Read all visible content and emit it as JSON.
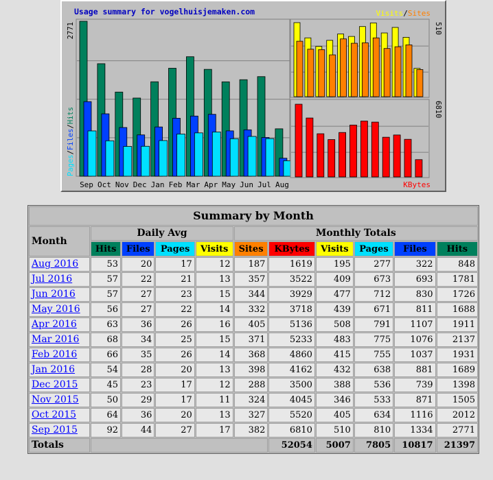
{
  "chart": {
    "title": "Usage summary for vogelhuisjemaken.com",
    "left_axis_label_parts": [
      "Pages",
      "/",
      "Files",
      "/",
      "Hits"
    ],
    "left_axis_max": "2771",
    "right_top_label_parts": [
      "Visits",
      "/",
      "Sites"
    ],
    "right_top_max": "510",
    "right_bottom_label": "KBytes",
    "right_bottom_max": "6810"
  },
  "chart_data": [
    {
      "type": "bar",
      "categories": [
        "Sep",
        "Oct",
        "Nov",
        "Dec",
        "Jan",
        "Feb",
        "Mar",
        "Apr",
        "May",
        "Jun",
        "Jul",
        "Aug"
      ],
      "series": [
        {
          "name": "Hits",
          "values": [
            2771,
            2012,
            1505,
            1398,
            1689,
            1931,
            2137,
            1911,
            1688,
            1726,
            1781,
            848
          ]
        },
        {
          "name": "Files",
          "values": [
            1334,
            1116,
            871,
            739,
            881,
            1037,
            1076,
            1107,
            811,
            830,
            693,
            322
          ]
        },
        {
          "name": "Pages",
          "values": [
            810,
            634,
            533,
            536,
            638,
            755,
            775,
            791,
            671,
            712,
            673,
            277
          ]
        }
      ],
      "ylim": [
        0,
        2771
      ]
    },
    {
      "type": "bar",
      "categories": [
        "Sep",
        "Oct",
        "Nov",
        "Dec",
        "Jan",
        "Feb",
        "Mar",
        "Apr",
        "May",
        "Jun",
        "Jul",
        "Aug"
      ],
      "series": [
        {
          "name": "Visits",
          "values": [
            510,
            405,
            346,
            388,
            432,
            415,
            483,
            508,
            439,
            477,
            409,
            195
          ]
        },
        {
          "name": "Sites",
          "values": [
            382,
            327,
            324,
            288,
            398,
            368,
            371,
            405,
            332,
            344,
            357,
            187
          ]
        }
      ],
      "ylim": [
        0,
        510
      ]
    },
    {
      "type": "bar",
      "categories": [
        "Sep",
        "Oct",
        "Nov",
        "Dec",
        "Jan",
        "Feb",
        "Mar",
        "Apr",
        "May",
        "Jun",
        "Jul",
        "Aug"
      ],
      "series": [
        {
          "name": "KBytes",
          "values": [
            6810,
            5520,
            4045,
            3500,
            4162,
            4860,
            5233,
            5136,
            3718,
            3929,
            3522,
            1619
          ]
        }
      ],
      "ylim": [
        0,
        6810
      ]
    }
  ],
  "colors": {
    "hits": "#00805c",
    "files": "#0040ff",
    "pages": "#00e0ff",
    "visits": "#ffff00",
    "sites": "#ff8000",
    "kbytes": "#ff0000",
    "link": "#0000ff"
  },
  "table": {
    "title": "Summary by Month",
    "month_header": "Month",
    "daily_avg_header": "Daily Avg",
    "monthly_totals_header": "Monthly Totals",
    "daily_columns": [
      "Hits",
      "Files",
      "Pages",
      "Visits"
    ],
    "monthly_columns": [
      "Sites",
      "KBytes",
      "Visits",
      "Pages",
      "Files",
      "Hits"
    ],
    "rows": [
      {
        "month": "Aug 2016",
        "avg": [
          "53",
          "20",
          "17",
          "12"
        ],
        "totals": [
          "187",
          "1619",
          "195",
          "277",
          "322",
          "848"
        ]
      },
      {
        "month": "Jul 2016",
        "avg": [
          "57",
          "22",
          "21",
          "13"
        ],
        "totals": [
          "357",
          "3522",
          "409",
          "673",
          "693",
          "1781"
        ]
      },
      {
        "month": "Jun 2016",
        "avg": [
          "57",
          "27",
          "23",
          "15"
        ],
        "totals": [
          "344",
          "3929",
          "477",
          "712",
          "830",
          "1726"
        ]
      },
      {
        "month": "May 2016",
        "avg": [
          "56",
          "27",
          "22",
          "14"
        ],
        "totals": [
          "332",
          "3718",
          "439",
          "671",
          "811",
          "1688"
        ]
      },
      {
        "month": "Apr 2016",
        "avg": [
          "63",
          "36",
          "26",
          "16"
        ],
        "totals": [
          "405",
          "5136",
          "508",
          "791",
          "1107",
          "1911"
        ]
      },
      {
        "month": "Mar 2016",
        "avg": [
          "68",
          "34",
          "25",
          "15"
        ],
        "totals": [
          "371",
          "5233",
          "483",
          "775",
          "1076",
          "2137"
        ]
      },
      {
        "month": "Feb 2016",
        "avg": [
          "66",
          "35",
          "26",
          "14"
        ],
        "totals": [
          "368",
          "4860",
          "415",
          "755",
          "1037",
          "1931"
        ]
      },
      {
        "month": "Jan 2016",
        "avg": [
          "54",
          "28",
          "20",
          "13"
        ],
        "totals": [
          "398",
          "4162",
          "432",
          "638",
          "881",
          "1689"
        ]
      },
      {
        "month": "Dec 2015",
        "avg": [
          "45",
          "23",
          "17",
          "12"
        ],
        "totals": [
          "288",
          "3500",
          "388",
          "536",
          "739",
          "1398"
        ]
      },
      {
        "month": "Nov 2015",
        "avg": [
          "50",
          "29",
          "17",
          "11"
        ],
        "totals": [
          "324",
          "4045",
          "346",
          "533",
          "871",
          "1505"
        ]
      },
      {
        "month": "Oct 2015",
        "avg": [
          "64",
          "36",
          "20",
          "13"
        ],
        "totals": [
          "327",
          "5520",
          "405",
          "634",
          "1116",
          "2012"
        ]
      },
      {
        "month": "Sep 2015",
        "avg": [
          "92",
          "44",
          "27",
          "17"
        ],
        "totals": [
          "382",
          "6810",
          "510",
          "810",
          "1334",
          "2771"
        ]
      }
    ],
    "totals_label": "Totals",
    "totals": [
      "52054",
      "5007",
      "7805",
      "10817",
      "21397"
    ]
  }
}
